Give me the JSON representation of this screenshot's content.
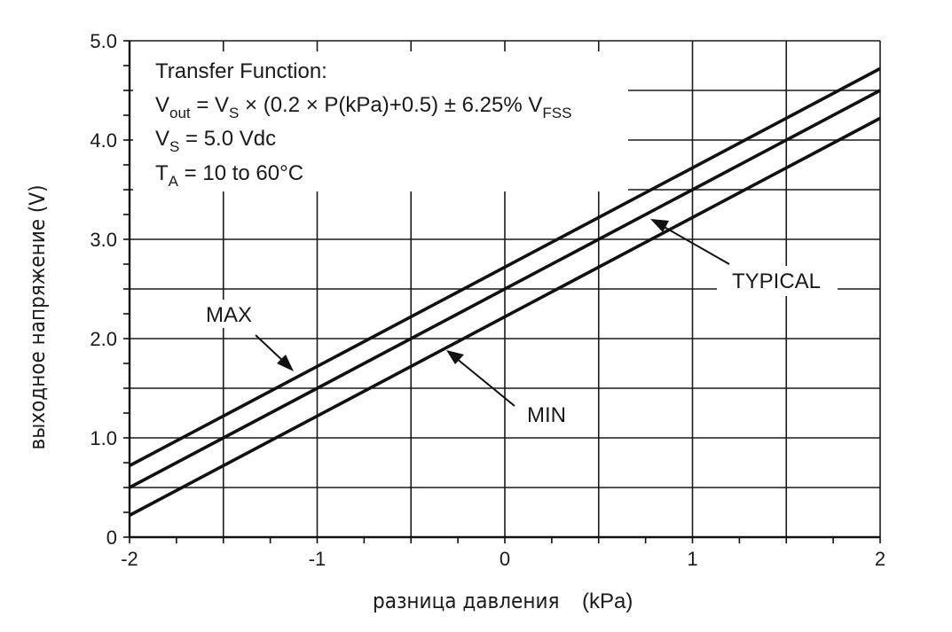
{
  "chart_data": {
    "type": "line",
    "title": "",
    "xlabel_text": "разница давления",
    "xlabel_unit": "(kPa)",
    "ylabel": "выходное напряжение (V)",
    "xlim": [
      -2,
      2
    ],
    "ylim": [
      0,
      5
    ],
    "x_ticks": [
      -2,
      -1,
      0,
      1,
      2
    ],
    "x_tick_labels": [
      "-2",
      "-1",
      "0",
      "1",
      "2"
    ],
    "y_ticks": [
      0,
      1,
      2,
      3,
      4,
      5
    ],
    "y_tick_labels": [
      "0",
      "1.0",
      "2.0",
      "3.0",
      "4.0",
      "5.0"
    ],
    "x_minor_step": 0.5,
    "y_minor_step": 0.5,
    "grid": true,
    "series": [
      {
        "name": "MAX",
        "x": [
          -2,
          2
        ],
        "y": [
          0.72,
          4.72
        ]
      },
      {
        "name": "TYPICAL",
        "x": [
          -2,
          2
        ],
        "y": [
          0.5,
          4.5
        ]
      },
      {
        "name": "MIN",
        "x": [
          -2,
          2
        ],
        "y": [
          0.22,
          4.22
        ]
      }
    ],
    "annotations": {
      "max_label": "MAX",
      "typical_label": "TYPICAL",
      "min_label": "MIN"
    },
    "transfer_function": {
      "heading": "Transfer Function:",
      "eq_vout_prefix": "V",
      "eq_vout_sub": "out",
      "eq_mid_prefix": " = V",
      "eq_mid_sub": "S",
      "eq_body": " × (0.2 × P(kPa)+0.5) ± 6.25% V",
      "eq_end_sub": "FSS",
      "vs_prefix": "V",
      "vs_sub": "S",
      "vs_value": " = 5.0 Vdc",
      "ta_prefix": "T",
      "ta_sub": "A",
      "ta_value": " = 10 to 60°C"
    },
    "colors": {
      "line": "#111111",
      "grid": "#1a1a1a",
      "background": "#ffffff"
    }
  }
}
